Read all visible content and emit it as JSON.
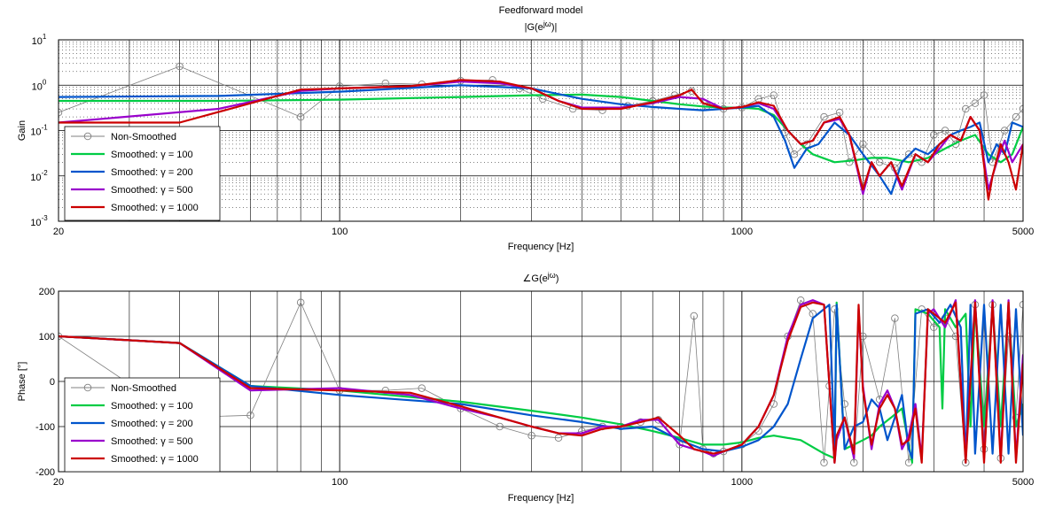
{
  "figure_title": "Feedforward model",
  "chart_data": [
    {
      "type": "line",
      "title": "|G(e^jω)|",
      "title_parts": {
        "base": "|G(e",
        "sup": "jω",
        "end": ")|"
      },
      "xlabel": "Frequency [Hz]",
      "ylabel": "Gain",
      "xscale": "log",
      "yscale": "log",
      "xlim": [
        20,
        5000
      ],
      "ylim": [
        0.001,
        10
      ],
      "x_major_ticks": [
        {
          "v": 20,
          "label": "20"
        },
        {
          "v": 100,
          "label": "100"
        },
        {
          "v": 1000,
          "label": "1000"
        },
        {
          "v": 5000,
          "label": "5000"
        }
      ],
      "y_major_ticks": [
        {
          "v": 0.001,
          "base": "10",
          "exp": "-3"
        },
        {
          "v": 0.01,
          "base": "10",
          "exp": "-2"
        },
        {
          "v": 0.1,
          "base": "10",
          "exp": "-1"
        },
        {
          "v": 1,
          "base": "10",
          "exp": "0"
        },
        {
          "v": 10,
          "base": "10",
          "exp": "1"
        }
      ],
      "grid": true,
      "minor_grid": true,
      "legend_position": "bottom-left",
      "series": [
        {
          "name": "Non-Smoothed",
          "color": "#808080",
          "marker": "circle",
          "x": [
            20,
            40,
            80,
            100,
            130,
            160,
            200,
            240,
            280,
            320,
            380,
            450,
            520,
            600,
            680,
            750,
            820,
            900,
            1000,
            1100,
            1200,
            1280,
            1350,
            1450,
            1600,
            1750,
            1850,
            2000,
            2200,
            2400,
            2600,
            2800,
            3000,
            3200,
            3400,
            3600,
            3800,
            4000,
            4200,
            4500,
            4800,
            5000
          ],
          "y": [
            0.25,
            2.6,
            0.2,
            0.95,
            1.1,
            1.05,
            1.25,
            1.3,
            0.85,
            0.5,
            0.3,
            0.28,
            0.35,
            0.45,
            0.6,
            0.75,
            0.35,
            0.3,
            0.32,
            0.5,
            0.6,
            0.09,
            0.03,
            0.05,
            0.2,
            0.25,
            0.02,
            0.05,
            0.02,
            0.015,
            0.03,
            0.02,
            0.08,
            0.1,
            0.05,
            0.3,
            0.4,
            0.6,
            0.02,
            0.1,
            0.2,
            0.3
          ]
        },
        {
          "name": "Smoothed: γ = 100",
          "color": "#00cc44",
          "x": [
            20,
            50,
            100,
            200,
            300,
            400,
            500,
            600,
            700,
            800,
            900,
            1000,
            1100,
            1200,
            1300,
            1400,
            1500,
            1700,
            1900,
            2100,
            2300,
            2600,
            2900,
            3200,
            3500,
            3800,
            4100,
            4400,
            4700,
            5000
          ],
          "y": [
            0.45,
            0.45,
            0.48,
            0.55,
            0.6,
            0.62,
            0.55,
            0.45,
            0.38,
            0.34,
            0.32,
            0.32,
            0.3,
            0.22,
            0.1,
            0.05,
            0.03,
            0.02,
            0.022,
            0.025,
            0.025,
            0.02,
            0.025,
            0.04,
            0.06,
            0.08,
            0.03,
            0.02,
            0.03,
            0.12
          ]
        },
        {
          "name": "Smoothed: γ = 200",
          "color": "#0055cc",
          "x": [
            20,
            50,
            100,
            200,
            300,
            400,
            500,
            600,
            700,
            800,
            900,
            1000,
            1100,
            1200,
            1280,
            1350,
            1450,
            1550,
            1700,
            1850,
            2000,
            2200,
            2350,
            2500,
            2700,
            2900,
            3100,
            3300,
            3500,
            3700,
            3900,
            4100,
            4300,
            4500,
            4700,
            5000
          ],
          "y": [
            0.55,
            0.58,
            0.72,
            1.0,
            0.85,
            0.5,
            0.38,
            0.33,
            0.3,
            0.28,
            0.3,
            0.32,
            0.35,
            0.2,
            0.06,
            0.015,
            0.04,
            0.05,
            0.15,
            0.08,
            0.03,
            0.01,
            0.004,
            0.02,
            0.04,
            0.03,
            0.05,
            0.08,
            0.1,
            0.12,
            0.15,
            0.02,
            0.05,
            0.03,
            0.15,
            0.12
          ]
        },
        {
          "name": "Smoothed: γ = 500",
          "color": "#9900cc",
          "x": [
            20,
            50,
            80,
            100,
            150,
            200,
            250,
            300,
            350,
            400,
            500,
            600,
            700,
            800,
            900,
            1000,
            1100,
            1200,
            1300,
            1400,
            1500,
            1600,
            1750,
            1850,
            2000,
            2100,
            2200,
            2350,
            2500,
            2700,
            2900,
            3100,
            3300,
            3500,
            3700,
            3900,
            4100,
            4300,
            4500,
            4700,
            5000
          ],
          "y": [
            0.15,
            0.3,
            0.75,
            0.85,
            0.95,
            1.2,
            1.1,
            0.85,
            0.45,
            0.32,
            0.32,
            0.4,
            0.55,
            0.5,
            0.3,
            0.33,
            0.4,
            0.3,
            0.1,
            0.05,
            0.06,
            0.15,
            0.18,
            0.08,
            0.004,
            0.02,
            0.01,
            0.02,
            0.005,
            0.03,
            0.02,
            0.04,
            0.08,
            0.06,
            0.2,
            0.1,
            0.005,
            0.02,
            0.06,
            0.02,
            0.05
          ]
        },
        {
          "name": "Smoothed: γ = 1000",
          "color": "#cc0000",
          "x": [
            20,
            40,
            80,
            100,
            150,
            200,
            250,
            300,
            350,
            400,
            500,
            600,
            700,
            750,
            800,
            900,
            1000,
            1100,
            1200,
            1300,
            1400,
            1500,
            1600,
            1750,
            1850,
            2000,
            2100,
            2200,
            2350,
            2500,
            2700,
            2900,
            3100,
            3300,
            3500,
            3700,
            3900,
            4100,
            4200,
            4400,
            4600,
            4800,
            5000
          ],
          "y": [
            0.15,
            0.15,
            0.8,
            0.85,
            0.95,
            1.3,
            1.2,
            0.85,
            0.45,
            0.3,
            0.3,
            0.42,
            0.6,
            0.8,
            0.4,
            0.3,
            0.33,
            0.42,
            0.35,
            0.1,
            0.05,
            0.06,
            0.15,
            0.2,
            0.08,
            0.005,
            0.02,
            0.01,
            0.02,
            0.006,
            0.03,
            0.02,
            0.05,
            0.08,
            0.06,
            0.2,
            0.1,
            0.003,
            0.01,
            0.05,
            0.02,
            0.005,
            0.05
          ]
        }
      ]
    },
    {
      "type": "line",
      "title": "∠G(e^jω)",
      "title_parts": {
        "base": "∠G(e",
        "sup": "jω",
        "end": ")"
      },
      "xlabel": "Frequency [Hz]",
      "ylabel": "Phase [°]",
      "xscale": "log",
      "yscale": "linear",
      "xlim": [
        20,
        5000
      ],
      "ylim": [
        -200,
        200
      ],
      "x_major_ticks": [
        {
          "v": 20,
          "label": "20"
        },
        {
          "v": 100,
          "label": "100"
        },
        {
          "v": 1000,
          "label": "1000"
        },
        {
          "v": 5000,
          "label": "5000"
        }
      ],
      "y_major_ticks": [
        {
          "v": -200,
          "label": "-200"
        },
        {
          "v": -100,
          "label": "-100"
        },
        {
          "v": 0,
          "label": "0"
        },
        {
          "v": 100,
          "label": "100"
        },
        {
          "v": 200,
          "label": "200"
        }
      ],
      "grid": true,
      "minor_grid": false,
      "legend_position": "bottom-left",
      "series": [
        {
          "name": "Non-Smoothed",
          "color": "#808080",
          "marker": "circle",
          "x": [
            20,
            40,
            60,
            80,
            100,
            130,
            160,
            200,
            250,
            300,
            350,
            400,
            450,
            500,
            560,
            620,
            700,
            760,
            800,
            850,
            900,
            1000,
            1100,
            1200,
            1300,
            1400,
            1500,
            1600,
            1650,
            1700,
            1800,
            1900,
            2000,
            2200,
            2400,
            2600,
            2800,
            3000,
            3200,
            3400,
            3600,
            3800,
            4000,
            4200,
            4400,
            4600,
            4800,
            5000
          ],
          "y": [
            100,
            -80,
            -75,
            175,
            -20,
            -20,
            -15,
            -60,
            -100,
            -120,
            -125,
            -110,
            -100,
            -100,
            -90,
            -85,
            -140,
            145,
            -150,
            -160,
            -155,
            -140,
            -110,
            -50,
            100,
            180,
            150,
            -180,
            -10,
            160,
            -50,
            -180,
            100,
            -40,
            140,
            -180,
            160,
            120,
            140,
            100,
            -180,
            170,
            -150,
            170,
            -170,
            100,
            -80,
            170
          ]
        },
        {
          "name": "Smoothed: γ = 100",
          "color": "#00cc44",
          "x": [
            20,
            40,
            60,
            100,
            200,
            300,
            400,
            500,
            600,
            700,
            800,
            900,
            1000,
            1100,
            1200,
            1400,
            1600,
            1700,
            1720,
            1800,
            1900,
            2000,
            2100,
            2200,
            2350,
            2500,
            2600,
            2650,
            2700,
            2900,
            3100,
            3150,
            3200,
            3400,
            3600,
            3700,
            3800,
            4000,
            4200,
            4400,
            4600,
            4800,
            5000
          ],
          "y": [
            100,
            85,
            -10,
            -20,
            -45,
            -65,
            -80,
            -95,
            -110,
            -125,
            -140,
            -140,
            -135,
            -125,
            -120,
            -130,
            -160,
            -170,
            175,
            -150,
            -140,
            -130,
            -120,
            -100,
            -80,
            -60,
            -140,
            -180,
            160,
            150,
            120,
            -60,
            160,
            120,
            150,
            -100,
            170,
            -100,
            170,
            -100,
            170,
            -100,
            -50
          ]
        },
        {
          "name": "Smoothed: γ = 200",
          "color": "#0055cc",
          "x": [
            20,
            40,
            60,
            100,
            200,
            300,
            400,
            500,
            600,
            700,
            800,
            900,
            1000,
            1100,
            1200,
            1300,
            1400,
            1500,
            1650,
            1700,
            1720,
            1800,
            1900,
            2000,
            2100,
            2200,
            2300,
            2400,
            2500,
            2600,
            2650,
            2700,
            2900,
            3100,
            3300,
            3500,
            3600,
            3700,
            3800,
            4000,
            4200,
            4400,
            4600,
            4800,
            5000
          ],
          "y": [
            100,
            85,
            -10,
            -30,
            -50,
            -75,
            -90,
            -105,
            -100,
            -130,
            -150,
            -155,
            -145,
            -130,
            -100,
            -50,
            50,
            140,
            170,
            -150,
            170,
            -150,
            -100,
            -90,
            -40,
            -60,
            -130,
            -80,
            -30,
            -150,
            -170,
            150,
            160,
            130,
            170,
            120,
            -180,
            170,
            -160,
            170,
            -160,
            170,
            -160,
            160,
            -120
          ]
        },
        {
          "name": "Smoothed: γ = 500",
          "color": "#9900cc",
          "x": [
            20,
            40,
            60,
            100,
            150,
            200,
            250,
            300,
            350,
            400,
            450,
            500,
            560,
            620,
            700,
            760,
            800,
            850,
            900,
            1000,
            1100,
            1200,
            1300,
            1400,
            1500,
            1600,
            1700,
            1720,
            1800,
            1900,
            1950,
            2000,
            2100,
            2200,
            2300,
            2400,
            2500,
            2600,
            2700,
            2800,
            2900,
            3000,
            3200,
            3400,
            3600,
            3800,
            4000,
            4200,
            4400,
            4600,
            4800,
            5000
          ],
          "y": [
            100,
            85,
            -20,
            -15,
            -30,
            -60,
            -80,
            -100,
            -115,
            -115,
            -100,
            -100,
            -85,
            -85,
            -140,
            -150,
            -155,
            -165,
            -155,
            -140,
            -100,
            -30,
            100,
            170,
            180,
            170,
            -180,
            -130,
            -80,
            -170,
            160,
            -10,
            -150,
            -50,
            -20,
            -60,
            -150,
            -120,
            -50,
            -170,
            150,
            160,
            120,
            180,
            -170,
            180,
            -170,
            180,
            -170,
            180,
            -170,
            60
          ]
        },
        {
          "name": "Smoothed: γ = 1000",
          "color": "#cc0000",
          "x": [
            20,
            40,
            60,
            100,
            150,
            200,
            250,
            300,
            350,
            400,
            450,
            500,
            560,
            620,
            700,
            760,
            800,
            850,
            900,
            1000,
            1100,
            1200,
            1300,
            1400,
            1500,
            1600,
            1700,
            1720,
            1800,
            1900,
            1950,
            2000,
            2100,
            2200,
            2300,
            2400,
            2500,
            2600,
            2700,
            2800,
            2900,
            3000,
            3200,
            3400,
            3600,
            3800,
            4000,
            4200,
            4400,
            4600,
            4800,
            5000
          ],
          "y": [
            100,
            85,
            -15,
            -20,
            -25,
            -55,
            -80,
            -100,
            -115,
            -120,
            -105,
            -100,
            -90,
            -80,
            -120,
            -150,
            -155,
            -160,
            -155,
            -140,
            -100,
            -30,
            90,
            165,
            175,
            170,
            -180,
            -120,
            -80,
            -160,
            170,
            -20,
            -140,
            -60,
            -30,
            -60,
            -140,
            -130,
            -60,
            -180,
            160,
            150,
            130,
            175,
            -180,
            175,
            -180,
            175,
            -180,
            175,
            -180,
            40
          ]
        }
      ]
    }
  ]
}
